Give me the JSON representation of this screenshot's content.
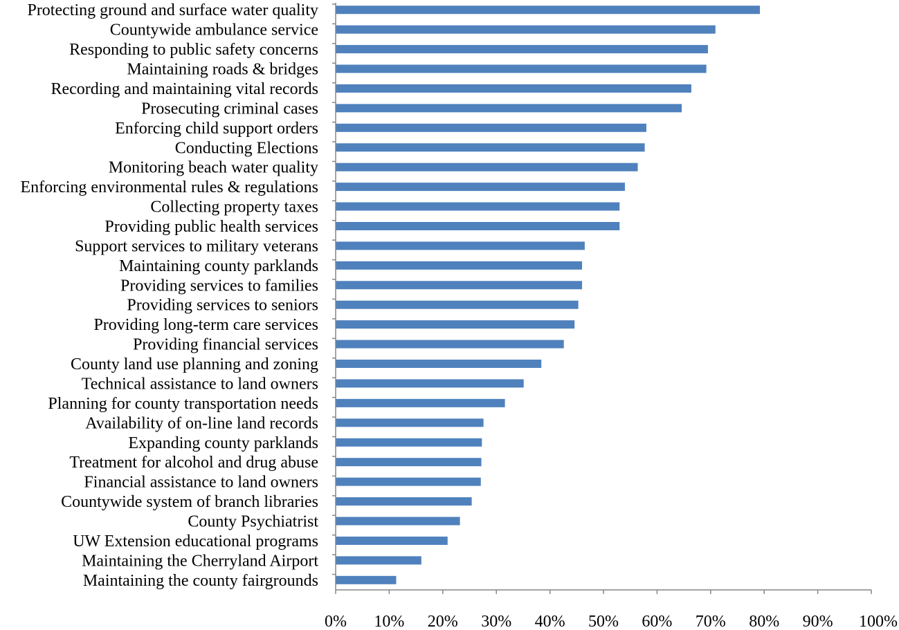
{
  "chart_data": {
    "type": "bar",
    "orientation": "horizontal",
    "title": "",
    "xlabel": "",
    "ylabel": "",
    "grid": false,
    "legend": "none",
    "bar_color": "#4F81BD",
    "xlim": [
      0,
      100
    ],
    "x_ticks": [
      "0%",
      "10%",
      "20%",
      "30%",
      "40%",
      "50%",
      "60%",
      "70%",
      "80%",
      "90%",
      "100%"
    ],
    "categories": [
      "Protecting ground and surface water quality",
      "Countywide ambulance service",
      "Responding to public safety concerns",
      "Maintaining  roads & bridges",
      "Recording and maintaining  vital records",
      "Prosecuting criminal  cases",
      "Enforcing child support orders",
      "Conducting Elections",
      "Monitoring  beach water  quality",
      "Enforcing environmental  rules & regulations",
      "Collecting property taxes",
      "Providing public health  services",
      "Support services to military  veterans",
      "Maintaining  county parklands",
      "Providing services to families",
      "Providing services to seniors",
      "Providing long-term  care services",
      "Providing financial  services",
      "County land use planning  and zoning",
      "Technical assistance to land owners",
      "Planning  for county transportation needs",
      "Availability  of on-line land records",
      "Expanding county parklands",
      "Treatment for alcohol and drug abuse",
      "Financial assistance to land owners",
      "Countywide system of branch libraries",
      "County Psychiatrist",
      "UW Extension educational programs",
      "Maintaining  the Cherryland  Airport",
      "Maintaining  the county fairgrounds"
    ],
    "values": [
      79.2,
      70.9,
      69.5,
      69.2,
      66.4,
      64.6,
      58.0,
      57.7,
      56.4,
      54.0,
      53.0,
      53.0,
      46.5,
      46.0,
      46.0,
      45.3,
      44.6,
      42.6,
      38.4,
      35.1,
      31.6,
      27.6,
      27.3,
      27.2,
      27.1,
      25.4,
      23.2,
      20.9,
      16.0,
      11.3
    ]
  }
}
